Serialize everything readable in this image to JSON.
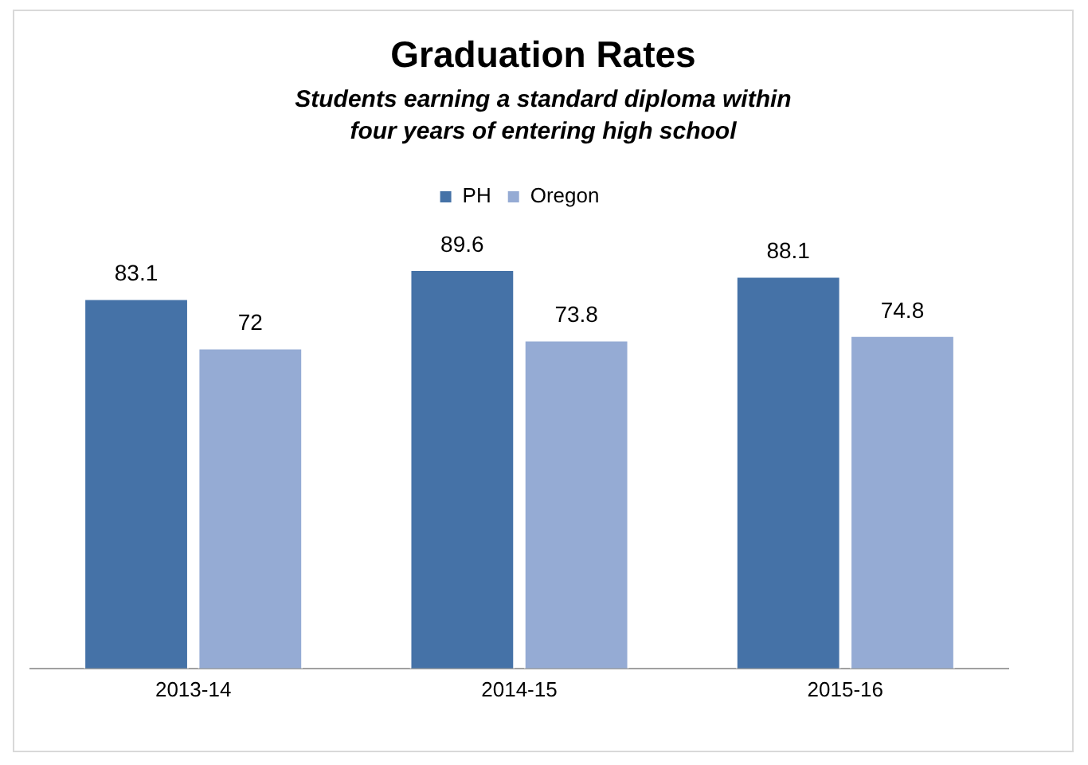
{
  "chart_data": {
    "type": "bar",
    "title": "Graduation Rates",
    "subtitle": "Students earning a standard diploma within four years of entering high school",
    "categories": [
      "2013-14",
      "2014-15",
      "2015-16"
    ],
    "series": [
      {
        "name": "PH",
        "color": "#4572a7",
        "values": [
          83.1,
          89.6,
          88.1
        ]
      },
      {
        "name": "Oregon",
        "color": "#95abd4",
        "values": [
          72,
          73.8,
          74.8
        ]
      }
    ],
    "data_labels": true,
    "legend": "top",
    "grid": false
  }
}
